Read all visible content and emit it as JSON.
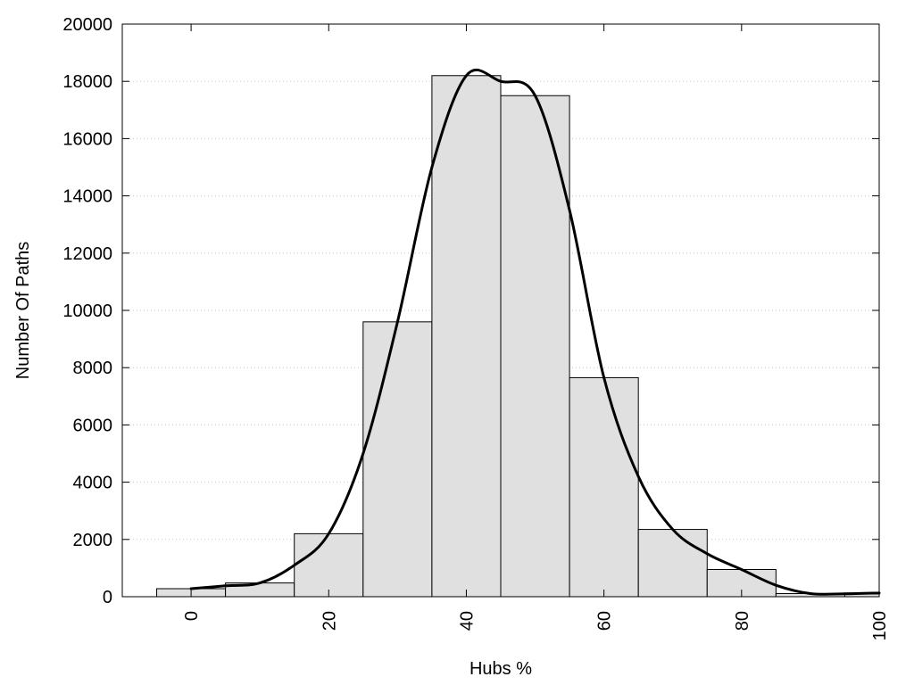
{
  "chart_data": {
    "type": "bar",
    "xlabel": "Hubs %",
    "ylabel": "Number Of Paths",
    "xlim": [
      -10,
      100
    ],
    "ylim": [
      0,
      20000
    ],
    "bin_width": 10,
    "bars": [
      {
        "x": 0,
        "value": 280
      },
      {
        "x": 10,
        "value": 480
      },
      {
        "x": 20,
        "value": 2200
      },
      {
        "x": 30,
        "value": 9600
      },
      {
        "x": 40,
        "value": 18200
      },
      {
        "x": 50,
        "value": 17500
      },
      {
        "x": 60,
        "value": 7650
      },
      {
        "x": 70,
        "value": 2350
      },
      {
        "x": 80,
        "value": 950
      },
      {
        "x": 90,
        "value": 110
      },
      {
        "x": 100,
        "value": 130
      }
    ],
    "curve": [
      {
        "x": 0,
        "y": 280
      },
      {
        "x": 5,
        "y": 380
      },
      {
        "x": 10,
        "y": 480
      },
      {
        "x": 15,
        "y": 1100
      },
      {
        "x": 20,
        "y": 2200
      },
      {
        "x": 25,
        "y": 5000
      },
      {
        "x": 30,
        "y": 9600
      },
      {
        "x": 35,
        "y": 15000
      },
      {
        "x": 40,
        "y": 18200
      },
      {
        "x": 45,
        "y": 18000
      },
      {
        "x": 50,
        "y": 17500
      },
      {
        "x": 55,
        "y": 13500
      },
      {
        "x": 60,
        "y": 7650
      },
      {
        "x": 65,
        "y": 4200
      },
      {
        "x": 70,
        "y": 2350
      },
      {
        "x": 75,
        "y": 1500
      },
      {
        "x": 80,
        "y": 950
      },
      {
        "x": 85,
        "y": 400
      },
      {
        "x": 90,
        "y": 110
      },
      {
        "x": 95,
        "y": 100
      },
      {
        "x": 100,
        "y": 130
      }
    ],
    "x_ticks": [
      "0",
      "20",
      "40",
      "60",
      "80",
      "100"
    ],
    "y_ticks": [
      "0",
      "2000",
      "4000",
      "6000",
      "8000",
      "10000",
      "12000",
      "14000",
      "16000",
      "18000",
      "20000"
    ],
    "grid": "horizontal dotted",
    "legend": "none"
  }
}
